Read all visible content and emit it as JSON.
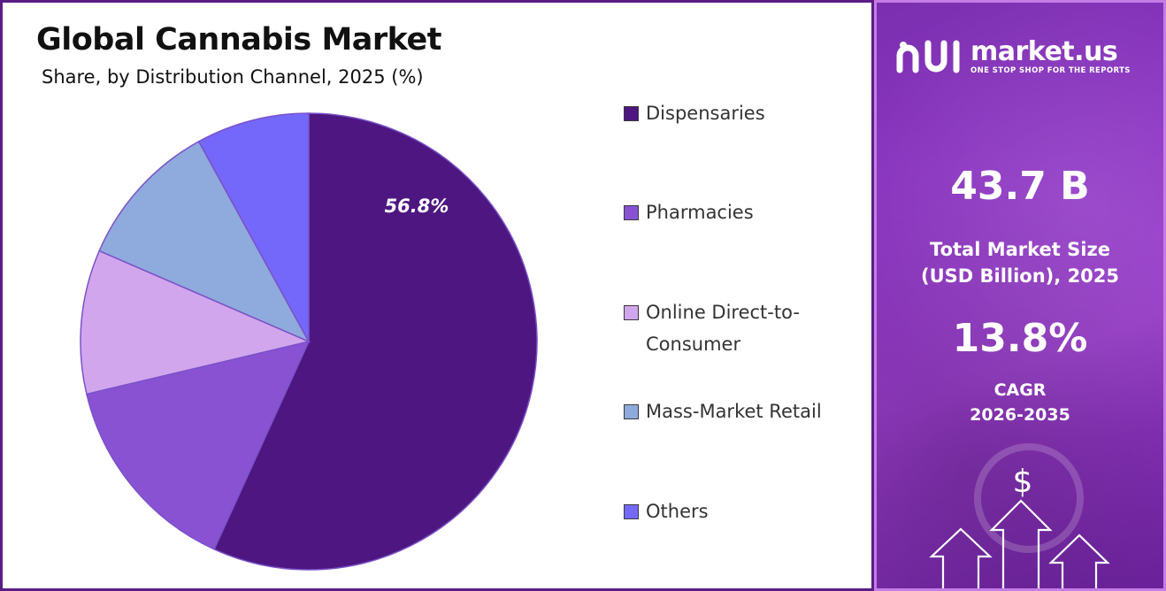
{
  "chart_data": {
    "type": "pie",
    "title": "Global Cannabis Market",
    "subtitle": "Share, by Distribution Channel, 2025 (%)",
    "slices": [
      {
        "label": "Dispensaries",
        "value": 56.8,
        "color": "#4e1681",
        "data_label": "56.8%"
      },
      {
        "label": "Pharmacies",
        "value": 14.5,
        "color": "#8852d3"
      },
      {
        "label": "Online Direct-to-Consumer",
        "value": 10.2,
        "color": "#d2a6ec"
      },
      {
        "label": "Mass-Market Retail",
        "value": 10.5,
        "color": "#8faadc"
      },
      {
        "label": "Others",
        "value": 8.0,
        "color": "#7468fb"
      }
    ],
    "legend_position": "right"
  },
  "brand": {
    "name": "market.us",
    "tagline": "ONE STOP SHOP FOR THE REPORTS"
  },
  "stats": {
    "market_size_value": "43.7 B",
    "market_size_label_line1": "Total Market Size",
    "market_size_label_line2": "(USD Billion), 2025",
    "cagr_value": "13.8%",
    "cagr_label_line1": "CAGR",
    "cagr_label_line2": "2026-2035"
  },
  "colors": {
    "panel_border": "#5a1d86",
    "side_panel": "#8e36c4"
  }
}
